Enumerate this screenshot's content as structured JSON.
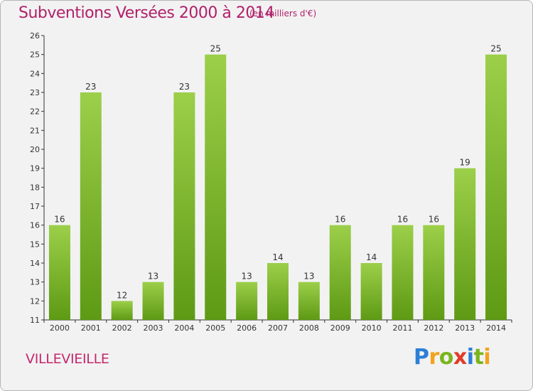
{
  "header": {
    "title": "Subventions Versées 2000 à 2014",
    "unit": "(en milliers d'€)"
  },
  "footer": {
    "commune": "VILLEVIEILLE",
    "logo": "Proxiti"
  },
  "colors": {
    "bar_light": "#9ccf4a",
    "bar_dark": "#5e9a14",
    "title": "#b0206a"
  },
  "chart_data": {
    "type": "bar",
    "title": "Subventions Versées 2000 à 2014",
    "xlabel": "",
    "ylabel": "",
    "categories": [
      "2000",
      "2001",
      "2002",
      "2003",
      "2004",
      "2005",
      "2006",
      "2007",
      "2008",
      "2009",
      "2010",
      "2011",
      "2012",
      "2013",
      "2014"
    ],
    "values": [
      16,
      23,
      12,
      13,
      23,
      25,
      13,
      14,
      13,
      16,
      14,
      16,
      16,
      19,
      25
    ],
    "ylim": [
      11,
      26
    ],
    "yticks": [
      11,
      12,
      13,
      14,
      15,
      16,
      17,
      18,
      19,
      20,
      21,
      22,
      23,
      24,
      25,
      26
    ],
    "grid": false,
    "legend": "none"
  }
}
